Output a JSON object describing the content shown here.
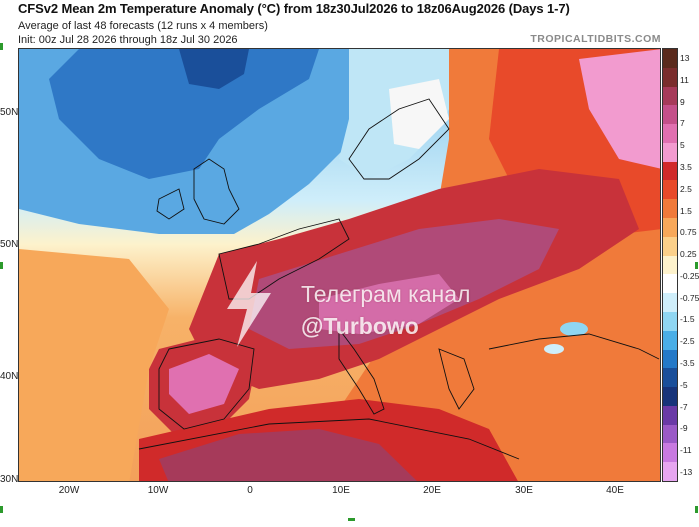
{
  "header": {
    "title": "CFSv2 Mean 2m Temperature Anomaly (°C) from 18z30Jul2026 to 18z06Aug2026 (Days 1-7)",
    "subtitle_1": "Average of last 48 forecasts (12 runs x 4 members)",
    "subtitle_2": "Init: 00z Jul 28 2026 through 18z Jul 30 2026",
    "site": "TROPICALTIDBITS.COM"
  },
  "map": {
    "latitude_labels": [
      "50N",
      "50N",
      "40N",
      "30N"
    ],
    "longitude_labels": [
      "20W",
      "10W",
      "0",
      "10E",
      "20E",
      "30E",
      "40E"
    ]
  },
  "colorbar": {
    "labels": [
      "13",
      "11",
      "9",
      "7",
      "5",
      "3.5",
      "2.5",
      "1.5",
      "0.75",
      "0.25",
      "-0.25",
      "-0.75",
      "-1.5",
      "-2.5",
      "-3.5",
      "-5",
      "-7",
      "-9",
      "-11",
      "-13"
    ],
    "colors": [
      "#5a2a1c",
      "#7a2d2d",
      "#a63a5a",
      "#c4508a",
      "#e070b0",
      "#f29bcf",
      "#d02a2a",
      "#e84a2a",
      "#f07a3a",
      "#f7a85a",
      "#fbd08a",
      "#fdf2cc",
      "#ffffff",
      "#cfeefa",
      "#8fd6f2",
      "#4aaee6",
      "#2479c8",
      "#1a4f9a",
      "#17347a",
      "#6a3aa6",
      "#9a5ac6",
      "#c87ae0",
      "#e6a6f0"
    ]
  },
  "watermark": {
    "line_1": "Телеграм канал",
    "line_2": "@Turbowo",
    "icon": "lightning-bolt-icon"
  }
}
